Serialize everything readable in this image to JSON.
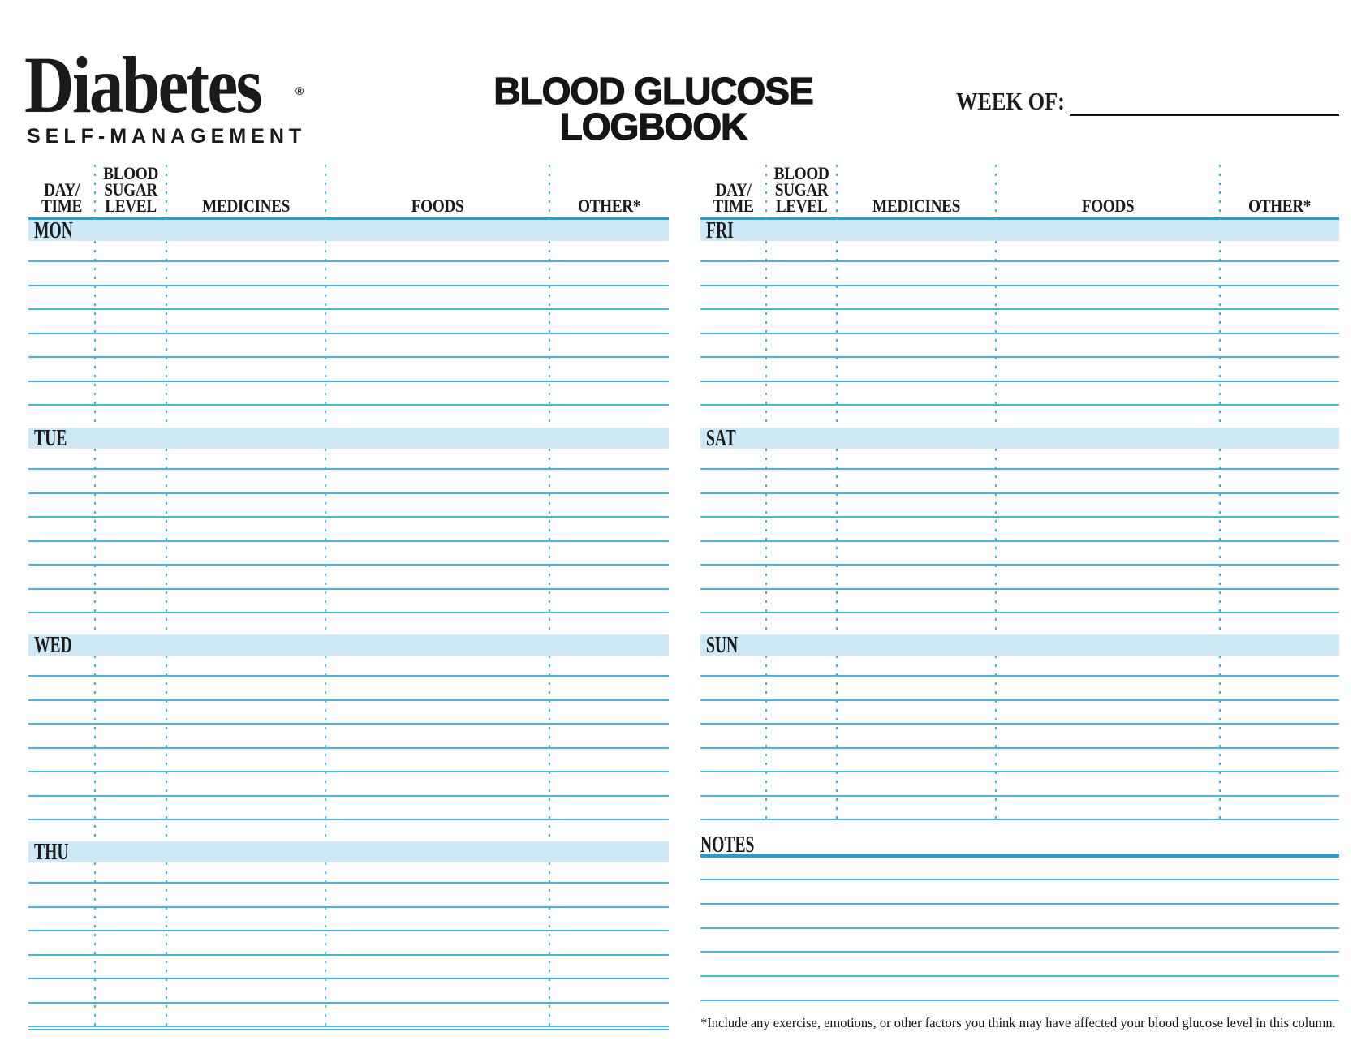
{
  "brand": {
    "name": "Diabetes",
    "registered_mark": "®",
    "tagline": "SELF-MANAGEMENT"
  },
  "title": {
    "line1": "BLOOD GLUCOSE",
    "line2": "LOGBOOK"
  },
  "week_of": {
    "label": "WEEK OF:",
    "value": ""
  },
  "column_headers": [
    {
      "id": "day-time",
      "lines": [
        "DAY/",
        "TIME"
      ]
    },
    {
      "id": "blood-sugar-level",
      "lines": [
        "BLOOD",
        "SUGAR",
        "LEVEL"
      ]
    },
    {
      "id": "medicines",
      "lines": [
        "MEDICINES"
      ]
    },
    {
      "id": "foods",
      "lines": [
        "FOODS"
      ]
    },
    {
      "id": "other",
      "lines": [
        "OTHER*"
      ]
    }
  ],
  "left_table": {
    "days": [
      "MON",
      "TUE",
      "WED",
      "THU"
    ]
  },
  "right_table": {
    "days": [
      "FRI",
      "SAT",
      "SUN"
    ]
  },
  "notes": {
    "label": "NOTES"
  },
  "footnote": "*Include any exercise, emotions, or other factors you think may have affected your blood glucose level in this column.",
  "colors": {
    "accent_rule": "#189fdd",
    "row_line": "#3eb7e9",
    "dotted_separator": "#35b2e7",
    "band_fill": "#cde9f8",
    "ink": "#1a1a1a"
  }
}
